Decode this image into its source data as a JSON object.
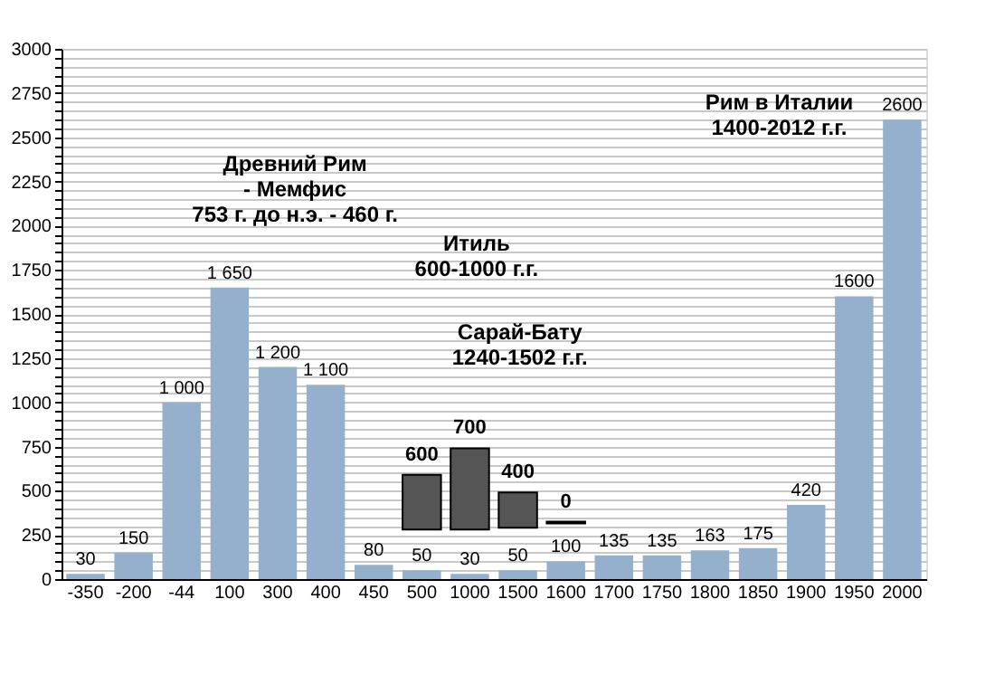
{
  "chart_data": {
    "type": "bar",
    "categories": [
      "-350",
      "-200",
      "-44",
      "100",
      "300",
      "400",
      "450",
      "500",
      "1000",
      "1500",
      "1600",
      "1700",
      "1750",
      "1800",
      "1850",
      "1900",
      "1950",
      "2000"
    ],
    "series": [
      {
        "color": "#94b0cc",
        "values": [
          30,
          150,
          1000,
          1650,
          1200,
          1100,
          80,
          50,
          30,
          50,
          100,
          135,
          135,
          163,
          175,
          420,
          1600,
          2600
        ],
        "value_labels": [
          "30",
          "150",
          "1 000",
          "1 650",
          "1 200",
          "1 100",
          "80",
          "50",
          "30",
          "50",
          "100",
          "135",
          "135",
          "163",
          "175",
          "420",
          "1600",
          "2600"
        ]
      },
      {
        "color": "#555555",
        "values": [
          null,
          null,
          null,
          null,
          null,
          null,
          null,
          310,
          460,
          200,
          10,
          null,
          null,
          null,
          null,
          null,
          null,
          null
        ],
        "base": [
          null,
          null,
          null,
          null,
          null,
          null,
          null,
          280,
          280,
          290,
          315,
          null,
          null,
          null,
          null,
          null,
          null,
          null
        ]
      }
    ],
    "ylim": [
      0,
      3000
    ],
    "yticks": [
      0,
      {
        "value": 50,
        "label": null
      },
      {
        "value": 100,
        "label": null
      },
      {
        "value": 150,
        "label": null
      },
      {
        "value": 200,
        "label": null
      },
      250,
      {
        "value": 300,
        "label": null
      },
      {
        "value": 350,
        "label": null
      },
      {
        "value": 400,
        "label": null
      },
      {
        "value": 450,
        "label": null
      },
      500,
      {
        "value": 550,
        "label": null
      },
      {
        "value": 600,
        "label": null
      },
      {
        "value": 650,
        "label": null
      },
      {
        "value": 700,
        "label": null
      },
      750,
      {
        "value": 800,
        "label": null
      },
      {
        "value": 850,
        "label": null
      },
      {
        "value": 900,
        "label": null
      },
      {
        "value": 950,
        "label": null
      },
      1000,
      {
        "value": 1050,
        "label": null
      },
      {
        "value": 1100,
        "label": null
      },
      {
        "value": 1150,
        "label": null
      },
      {
        "value": 1200,
        "label": null
      },
      1250,
      {
        "value": 1300,
        "label": null
      },
      {
        "value": 1350,
        "label": null
      },
      {
        "value": 1400,
        "label": null
      },
      {
        "value": 1450,
        "label": null
      },
      1500,
      {
        "value": 1550,
        "label": null
      },
      {
        "value": 1600,
        "label": null
      },
      {
        "value": 1650,
        "label": null
      },
      {
        "value": 1700,
        "label": null
      },
      1750,
      {
        "value": 1800,
        "label": null
      },
      {
        "value": 1850,
        "label": null
      },
      {
        "value": 1900,
        "label": null
      },
      {
        "value": 1950,
        "label": null
      },
      2000,
      {
        "value": 2050,
        "label": null
      },
      {
        "value": 2100,
        "label": null
      },
      {
        "value": 2150,
        "label": null
      },
      {
        "value": 2200,
        "label": null
      },
      2250,
      {
        "value": 2300,
        "label": null
      },
      {
        "value": 2350,
        "label": null
      },
      {
        "value": 2400,
        "label": null
      },
      {
        "value": 2450,
        "label": null
      },
      2500,
      {
        "value": 2550,
        "label": null
      },
      {
        "value": 2600,
        "label": null
      },
      {
        "value": 2650,
        "label": null
      },
      {
        "value": 2700,
        "label": null
      },
      2750,
      {
        "value": 2800,
        "label": null
      },
      {
        "value": 2850,
        "label": null
      },
      {
        "value": 2900,
        "label": null
      },
      {
        "value": 2950,
        "label": null
      },
      3000
    ],
    "grid": "y",
    "annotations": [
      "Древний Рим\n- Мемфис\n753 г. до н.э. - 460 г.",
      "Итиль\n600-1000 г.г.",
      "Сарай-Бату\n1240-1502 г.г.",
      "Рим в Италии\n1400-2012 г.г.",
      {
        "text": "600",
        "x": "500",
        "y": 590
      },
      {
        "text": "700",
        "x": "1000",
        "y": 740
      },
      {
        "text": "400",
        "x": "1500",
        "y": 490
      },
      {
        "text": "0",
        "x": "1600",
        "y": 325
      }
    ]
  }
}
